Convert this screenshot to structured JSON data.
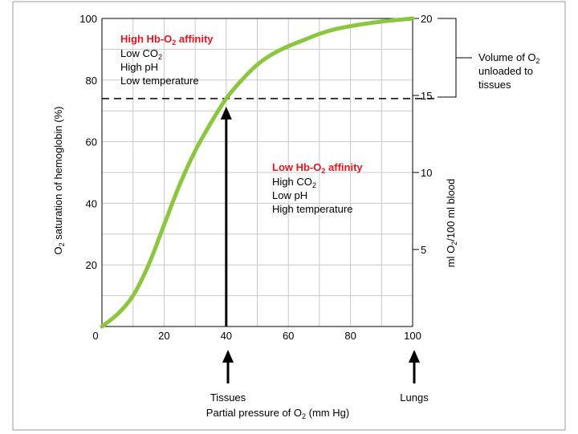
{
  "chart_data": {
    "type": "line",
    "title": "",
    "xlabel": "Partial pressure of O2 (mm Hg)",
    "xlabel_parts": {
      "pre": "Partial pressure of O",
      "sub": "2",
      "post": " (mm Hg)"
    },
    "ylabel": "O2 saturation of hemoglobin (%)",
    "ylabel_parts": {
      "pre": "O",
      "sub": "2",
      "post": " saturation of hemoglobin (%)"
    },
    "y2label": "ml O2/100 ml blood",
    "y2label_parts": {
      "pre": "ml O",
      "sub": "2",
      "post": "/100 ml blood"
    },
    "xlim": [
      0,
      100
    ],
    "ylim": [
      0,
      100
    ],
    "y2lim": [
      0,
      20
    ],
    "x_ticks": [
      0,
      20,
      40,
      60,
      80,
      100
    ],
    "y_ticks": [
      0,
      20,
      40,
      60,
      80,
      100
    ],
    "y2_ticks": [
      5,
      10,
      15,
      20
    ],
    "grid": true,
    "series": [
      {
        "color": "#8cc63f",
        "x": [
          0,
          5,
          10,
          15,
          20,
          25,
          30,
          35,
          40,
          45,
          50,
          55,
          60,
          65,
          70,
          75,
          80,
          85,
          90,
          95,
          100
        ],
        "values": [
          0,
          4,
          10,
          20,
          33,
          46,
          57,
          66,
          74,
          80,
          85,
          88.5,
          91,
          93,
          95,
          96.5,
          97.5,
          98.3,
          99,
          99.5,
          100
        ]
      }
    ],
    "reference_line": {
      "y": 74,
      "style": "dashed",
      "color": "#000000"
    },
    "arrows": [
      {
        "x": 40,
        "from_y": 0,
        "to_y": 74
      }
    ],
    "annotations": {
      "high_affinity": {
        "title_pre": "High Hb-O",
        "title_sub": "2",
        "title_post": " affinity",
        "title_color": "#e8141e",
        "line1_pre": "Low CO",
        "line1_sub": "2",
        "line2": "High pH",
        "line3": "Low temperature"
      },
      "low_affinity": {
        "title_pre": "Low Hb-O",
        "title_sub": "2",
        "title_post": " affinity",
        "title_color": "#e8141e",
        "line1_pre": "High CO",
        "line1_sub": "2",
        "line2": "Low pH",
        "line3": "High temperature"
      },
      "unloaded": {
        "line1_pre": "Volume of O",
        "line1_sub": "2",
        "line2": "unloaded to",
        "line3": "tissues"
      },
      "tissues_label": "Tissues",
      "lungs_label": "Lungs"
    }
  }
}
